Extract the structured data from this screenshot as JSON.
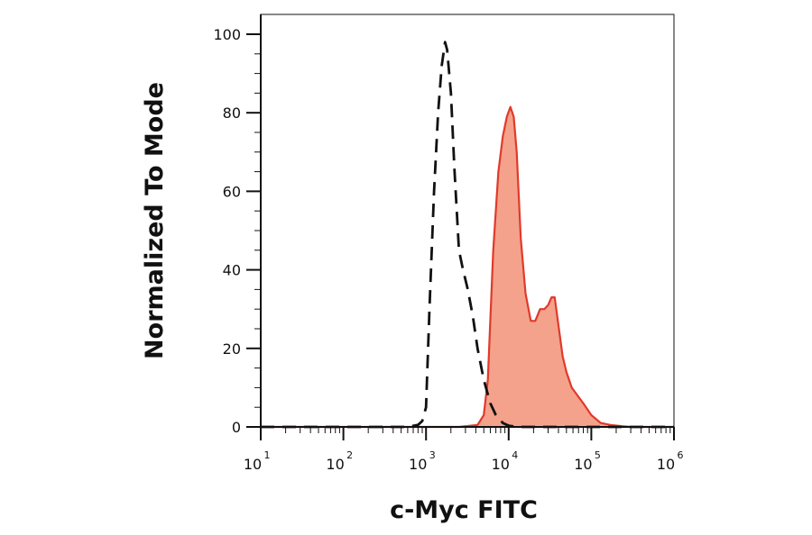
{
  "chart_data": {
    "type": "area",
    "xlabel": "c-Myc FITC",
    "ylabel": "Normalized To Mode",
    "xscale": "log",
    "xlim": [
      10,
      1000000
    ],
    "ylim": [
      0,
      100
    ],
    "x_ticks": [
      {
        "base": "10",
        "exp": "1"
      },
      {
        "base": "10",
        "exp": "2"
      },
      {
        "base": "10",
        "exp": "3"
      },
      {
        "base": "10",
        "exp": "4"
      },
      {
        "base": "10",
        "exp": "5"
      },
      {
        "base": "10",
        "exp": "6"
      }
    ],
    "y_ticks": [
      "0",
      "20",
      "40",
      "60",
      "80",
      "100"
    ],
    "grid": false,
    "legend": "none",
    "series": [
      {
        "style": "filled",
        "fill_color": "#f4a28c",
        "line_color": "#e03a2a",
        "x": [
          10,
          1000,
          2500,
          4200,
          5000,
          5600,
          6500,
          7500,
          8500,
          9500,
          10500,
          11500,
          12500,
          14000,
          16000,
          18500,
          21000,
          24000,
          27000,
          30000,
          33000,
          36000,
          40000,
          45000,
          50000,
          58000,
          68000,
          80000,
          100000,
          130000,
          170000,
          230000,
          300000,
          1000000
        ],
        "y": [
          0,
          0,
          0,
          0.5,
          3,
          12,
          45,
          65,
          74,
          79,
          81.5,
          79,
          70,
          48,
          34,
          27,
          27,
          30,
          30,
          31,
          33,
          33,
          26,
          18,
          14,
          10,
          8,
          6,
          3,
          1,
          0.5,
          0.2,
          0,
          0
        ]
      },
      {
        "style": "dashed",
        "line_color": "#111111",
        "x": [
          10,
          600,
          800,
          900,
          1000,
          1100,
          1250,
          1400,
          1550,
          1700,
          1800,
          2000,
          2200,
          2500,
          2800,
          3200,
          3700,
          4200,
          5000,
          6000,
          7000,
          8500,
          10000,
          13000,
          20000,
          1000000
        ],
        "y": [
          0,
          0,
          0.5,
          1.5,
          5,
          30,
          60,
          80,
          92,
          98,
          96,
          85,
          66,
          45,
          40,
          35,
          28,
          20,
          12,
          6,
          3,
          1,
          0.3,
          0,
          0,
          0
        ]
      }
    ]
  }
}
